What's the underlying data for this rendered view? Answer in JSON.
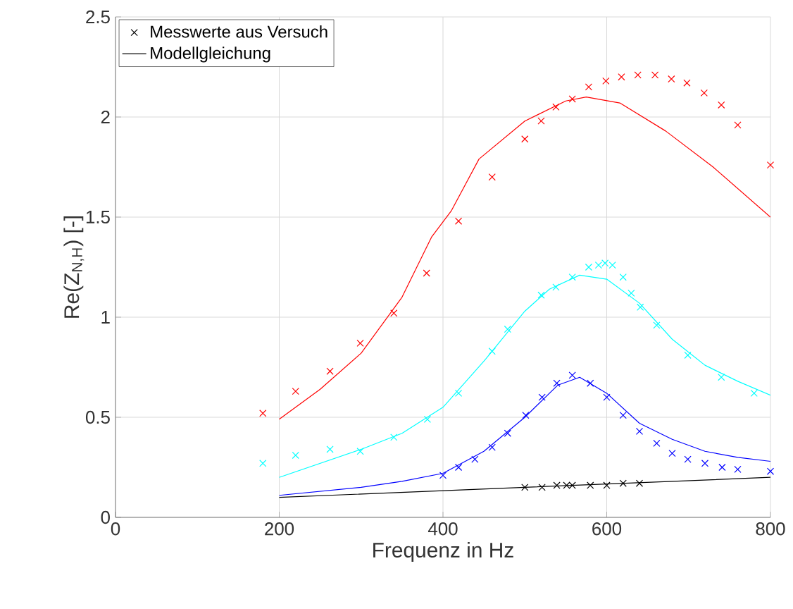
{
  "chart_data": {
    "type": "scatter",
    "xlabel": "Frequenz in Hz",
    "ylabel": "Re(Z$_{N,H}$) [-]",
    "xlim": [
      0,
      800
    ],
    "xticks": [
      0,
      200,
      400,
      600,
      800
    ],
    "ylim": [
      0,
      2.5
    ],
    "yticks": [
      0,
      0.5,
      1,
      1.5,
      2,
      2.5
    ],
    "grid": true,
    "legend": "top left",
    "series": [
      {
        "name": "Messwerte aus Versuch",
        "marker": "cross",
        "color": "#000000",
        "x": [
          500,
          521,
          539,
          551,
          558,
          580,
          600,
          620,
          640
        ],
        "values": [
          0.15,
          0.15,
          0.16,
          0.16,
          0.16,
          0.16,
          0.16,
          0.17,
          0.17
        ]
      },
      {
        "name": "Modellgleichung",
        "type": "line",
        "color": "#000000",
        "x": [
          200,
          500,
          800
        ],
        "values": [
          0.1,
          0.15,
          0.2
        ]
      },
      {
        "marker": "cross",
        "color": "#ff0000",
        "x": [
          180,
          220,
          262,
          299,
          340,
          380,
          419,
          460,
          500,
          520,
          538,
          558,
          578,
          599,
          618,
          638,
          659,
          679,
          698,
          719,
          740,
          760,
          800
        ],
        "values": [
          0.52,
          0.63,
          0.73,
          0.87,
          1.02,
          1.22,
          1.48,
          1.7,
          1.89,
          1.98,
          2.05,
          2.09,
          2.15,
          2.18,
          2.2,
          2.21,
          2.21,
          2.19,
          2.17,
          2.12,
          2.06,
          1.96,
          1.76
        ]
      },
      {
        "type": "line",
        "color": "#ff0000",
        "x": [
          200,
          250,
          300,
          350,
          386,
          410,
          444,
          500,
          550,
          575,
          616,
          672,
          730,
          800
        ],
        "values": [
          0.49,
          0.64,
          0.82,
          1.1,
          1.4,
          1.53,
          1.79,
          1.98,
          2.08,
          2.1,
          2.07,
          1.93,
          1.75,
          1.5
        ]
      },
      {
        "marker": "cross",
        "color": "#00ffff",
        "x": [
          180,
          220,
          262,
          299,
          340,
          381,
          419,
          460,
          479,
          520,
          538,
          558,
          578,
          590,
          598,
          607,
          620,
          630,
          641,
          661,
          699,
          740,
          780
        ],
        "values": [
          0.27,
          0.31,
          0.34,
          0.33,
          0.4,
          0.49,
          0.62,
          0.83,
          0.94,
          1.11,
          1.15,
          1.2,
          1.25,
          1.26,
          1.27,
          1.26,
          1.2,
          1.12,
          1.05,
          0.96,
          0.81,
          0.7,
          0.62
        ]
      },
      {
        "type": "line",
        "color": "#00ffff",
        "x": [
          200,
          250,
          300,
          350,
          400,
          450,
          500,
          530,
          567,
          600,
          640,
          680,
          720,
          760,
          800
        ],
        "values": [
          0.2,
          0.27,
          0.34,
          0.42,
          0.55,
          0.78,
          1.03,
          1.14,
          1.21,
          1.19,
          1.07,
          0.89,
          0.76,
          0.68,
          0.61
        ]
      },
      {
        "marker": "cross",
        "color": "#0000ff",
        "x": [
          400,
          419,
          439,
          460,
          479,
          501,
          521,
          539,
          558,
          580,
          600,
          620,
          640,
          661,
          680,
          699,
          720,
          741,
          760,
          800
        ],
        "values": [
          0.21,
          0.25,
          0.29,
          0.35,
          0.42,
          0.51,
          0.6,
          0.67,
          0.71,
          0.67,
          0.6,
          0.51,
          0.43,
          0.37,
          0.32,
          0.29,
          0.27,
          0.25,
          0.24,
          0.23
        ]
      },
      {
        "type": "line",
        "color": "#0000ff",
        "x": [
          200,
          250,
          300,
          350,
          400,
          450,
          500,
          540,
          567,
          600,
          640,
          680,
          720,
          760,
          800
        ],
        "values": [
          0.11,
          0.13,
          0.15,
          0.18,
          0.22,
          0.33,
          0.5,
          0.66,
          0.7,
          0.62,
          0.47,
          0.39,
          0.33,
          0.3,
          0.28
        ]
      }
    ]
  }
}
